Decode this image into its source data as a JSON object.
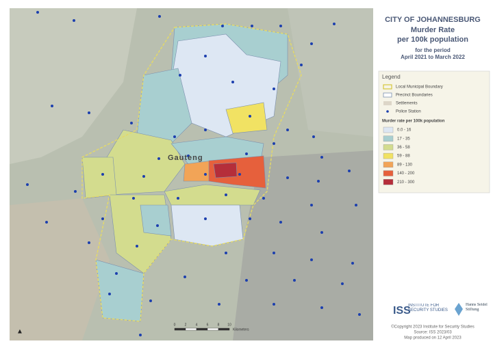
{
  "title": {
    "line1": "CITY OF JOHANNESBURG",
    "line2": "Murder Rate",
    "line3": "per 100k population",
    "period_label": "for the period",
    "period": "April 2021 to March 2022"
  },
  "map": {
    "region_label": "Gauteng",
    "scale": [
      "0",
      "2",
      "4",
      "6",
      "8",
      "10"
    ],
    "scale_unit": "Kilometers"
  },
  "legend": {
    "title": "Legend",
    "items": [
      {
        "label": "Local Municipal Boundary"
      },
      {
        "label": "Precinct Boundaries"
      },
      {
        "label": "Settlements"
      },
      {
        "label": "Police Station"
      }
    ],
    "classes_title": "Murder rate per 100k population",
    "classes": [
      {
        "label": "0.0 - 16",
        "color": "#dde7f3"
      },
      {
        "label": "17 - 35",
        "color": "#a8cfd0"
      },
      {
        "label": "36 - 58",
        "color": "#d3dc8e"
      },
      {
        "label": "59 - 88",
        "color": "#f1e263"
      },
      {
        "label": "89 - 130",
        "color": "#f2a457"
      },
      {
        "label": "140 - 200",
        "color": "#e6603c"
      },
      {
        "label": "210 - 300",
        "color": "#b52e3a"
      }
    ]
  },
  "logos": {
    "iss": "ISS",
    "iss_name": "INSTITUTE FOR SECURITY STUDIES",
    "hss": "Hanns Seidel Stiftung"
  },
  "credits": [
    "©Copyright 2023 Institute for Security Studies",
    "Source: ISS 2023/03",
    "Map produced on 12 April 2023"
  ]
}
